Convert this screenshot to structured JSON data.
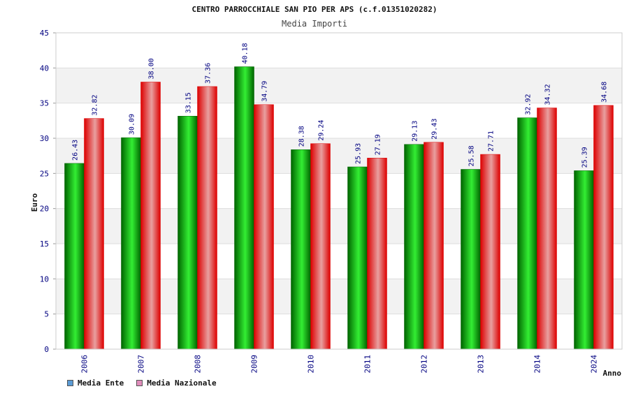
{
  "chart_data": {
    "type": "bar",
    "title": "CENTRO PARROCCHIALE SAN PIO PER APS (c.f.01351020282)",
    "subtitle": "Media Importi",
    "xlabel": "Anno",
    "ylabel": "Euro",
    "ylim": [
      0,
      45
    ],
    "yticks": [
      0,
      5,
      10,
      15,
      20,
      25,
      30,
      35,
      40,
      45
    ],
    "grid": true,
    "legend_position": "bottom-left",
    "categories": [
      "2006",
      "2007",
      "2008",
      "2009",
      "2010",
      "2011",
      "2012",
      "2013",
      "2014",
      "2024"
    ],
    "series": [
      {
        "name": "Media Ente",
        "legend_color": "#5b9bd5",
        "color_dark": "#006400",
        "color_light": "#33ee33",
        "values": [
          26.43,
          30.09,
          33.15,
          40.18,
          28.38,
          25.93,
          29.13,
          25.58,
          32.92,
          25.39
        ],
        "labels": [
          "26.43",
          "30.09",
          "33.15",
          "40.18",
          "28.38",
          "25.93",
          "29.13",
          "25.58",
          "32.92",
          "25.39"
        ]
      },
      {
        "name": "Media Nazionale",
        "legend_color": "#e08dbb",
        "color_dark": "#dd0000",
        "color_light": "#e8a0a0",
        "values": [
          32.82,
          38.0,
          37.36,
          34.79,
          29.24,
          27.19,
          29.43,
          27.71,
          34.32,
          34.68
        ],
        "labels": [
          "32.82",
          "38.00",
          "37.36",
          "34.79",
          "29.24",
          "27.19",
          "29.43",
          "27.71",
          "34.32",
          "34.68"
        ]
      }
    ]
  }
}
